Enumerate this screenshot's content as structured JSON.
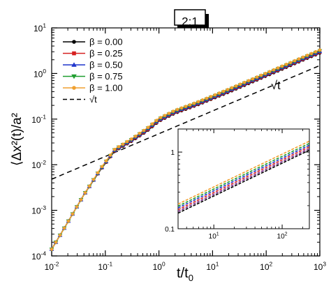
{
  "chart_data": [
    {
      "type": "line",
      "panel_label": "2:1",
      "xlabel": "t/t",
      "xlabel_sub": "0",
      "ylabel": "⟨Δx²(t)/a²",
      "xscale": "log",
      "yscale": "log",
      "xlim": [
        0.01,
        1000
      ],
      "ylim": [
        0.0001,
        10
      ],
      "x_tick_labels": [
        {
          "v": 0.01,
          "base": "10",
          "exp": "-2"
        },
        {
          "v": 0.1,
          "base": "10",
          "exp": "-1"
        },
        {
          "v": 1,
          "base": "10",
          "exp": "0"
        },
        {
          "v": 10,
          "base": "10",
          "exp": "1"
        },
        {
          "v": 100,
          "base": "10",
          "exp": "2"
        },
        {
          "v": 1000,
          "base": "10",
          "exp": "3"
        }
      ],
      "y_tick_labels": [
        {
          "v": 0.0001,
          "base": "10",
          "exp": "-4"
        },
        {
          "v": 0.001,
          "base": "10",
          "exp": "-3"
        },
        {
          "v": 0.01,
          "base": "10",
          "exp": "-2"
        },
        {
          "v": 0.1,
          "base": "10",
          "exp": "-1"
        },
        {
          "v": 1,
          "base": "10",
          "exp": "0"
        },
        {
          "v": 10,
          "base": "10",
          "exp": "1"
        }
      ],
      "legend_position": "top-left",
      "annotations": [
        {
          "text": "√t",
          "x": 150,
          "y": 0.45
        }
      ],
      "series": [
        {
          "name": "β = 0.00",
          "color": "#000000",
          "marker": "circle",
          "x": [
            0.01,
            0.02,
            0.04,
            0.08,
            0.15,
            0.3,
            0.6,
            1,
            2,
            5,
            10,
            20,
            50,
            100,
            200,
            500,
            1000
          ],
          "y": [
            0.00014,
            0.00055,
            0.0022,
            0.0075,
            0.02,
            0.032,
            0.055,
            0.09,
            0.135,
            0.2,
            0.28,
            0.39,
            0.62,
            0.88,
            1.25,
            2.0,
            2.8
          ]
        },
        {
          "name": "β = 0.25",
          "color": "#d62020",
          "marker": "square",
          "x": [
            0.01,
            0.02,
            0.04,
            0.08,
            0.15,
            0.3,
            0.6,
            1,
            2,
            5,
            10,
            20,
            50,
            100,
            200,
            500,
            1000
          ],
          "y": [
            0.00014,
            0.00055,
            0.0022,
            0.0076,
            0.0205,
            0.033,
            0.057,
            0.093,
            0.14,
            0.207,
            0.29,
            0.405,
            0.645,
            0.915,
            1.3,
            2.07,
            2.92
          ]
        },
        {
          "name": "β = 0.50",
          "color": "#1f35cc",
          "marker": "triangle-up",
          "x": [
            0.01,
            0.02,
            0.04,
            0.08,
            0.15,
            0.3,
            0.6,
            1,
            2,
            5,
            10,
            20,
            50,
            100,
            200,
            500,
            1000
          ],
          "y": [
            0.00014,
            0.00055,
            0.0022,
            0.0077,
            0.021,
            0.034,
            0.059,
            0.096,
            0.145,
            0.215,
            0.3,
            0.42,
            0.67,
            0.95,
            1.35,
            2.15,
            3.03
          ]
        },
        {
          "name": "β = 0.75",
          "color": "#1e9e2e",
          "marker": "triangle-down",
          "x": [
            0.01,
            0.02,
            0.04,
            0.08,
            0.15,
            0.3,
            0.6,
            1,
            2,
            5,
            10,
            20,
            50,
            100,
            200,
            500,
            1000
          ],
          "y": [
            0.00014,
            0.00055,
            0.0022,
            0.0078,
            0.0215,
            0.035,
            0.061,
            0.1,
            0.15,
            0.223,
            0.311,
            0.437,
            0.695,
            0.985,
            1.4,
            2.23,
            3.15
          ]
        },
        {
          "name": "β = 1.00",
          "color": "#f0a030",
          "marker": "circle",
          "x": [
            0.01,
            0.02,
            0.04,
            0.08,
            0.15,
            0.3,
            0.6,
            1,
            2,
            5,
            10,
            20,
            50,
            100,
            200,
            500,
            1000
          ],
          "y": [
            0.00014,
            0.00055,
            0.0022,
            0.008,
            0.022,
            0.036,
            0.063,
            0.104,
            0.156,
            0.232,
            0.323,
            0.455,
            0.72,
            1.02,
            1.46,
            2.32,
            3.28
          ]
        },
        {
          "name": "√t",
          "color": "#000000",
          "dashed": true,
          "marker": "none",
          "x": [
            0.01,
            1000
          ],
          "y": [
            0.0048,
            1.5
          ]
        }
      ]
    },
    {
      "type": "line",
      "role": "inset",
      "xscale": "log",
      "yscale": "log",
      "xlim": [
        3,
        250
      ],
      "ylim": [
        0.1,
        2
      ],
      "x_tick_labels": [
        {
          "v": 10,
          "base": "10",
          "exp": "1"
        },
        {
          "v": 100,
          "base": "10",
          "exp": "2"
        }
      ],
      "y_tick_labels": [
        {
          "v": 0.1,
          "base": "0.1",
          "exp": ""
        },
        {
          "v": 1,
          "base": "1",
          "exp": ""
        }
      ],
      "series": [
        {
          "color": "#000000",
          "x": [
            3,
            250
          ],
          "y": [
            0.16,
            1.06
          ]
        },
        {
          "color": "#7a2a8a",
          "x": [
            3,
            250
          ],
          "y": [
            0.168,
            1.11
          ]
        },
        {
          "color": "#d62020",
          "x": [
            3,
            250
          ],
          "y": [
            0.177,
            1.17
          ]
        },
        {
          "color": "#1f35cc",
          "x": [
            3,
            250
          ],
          "y": [
            0.187,
            1.23
          ]
        },
        {
          "color": "#1e9e2e",
          "x": [
            3,
            250
          ],
          "y": [
            0.197,
            1.3
          ]
        },
        {
          "color": "#f0a030",
          "x": [
            3,
            250
          ],
          "y": [
            0.21,
            1.39
          ]
        }
      ]
    }
  ]
}
